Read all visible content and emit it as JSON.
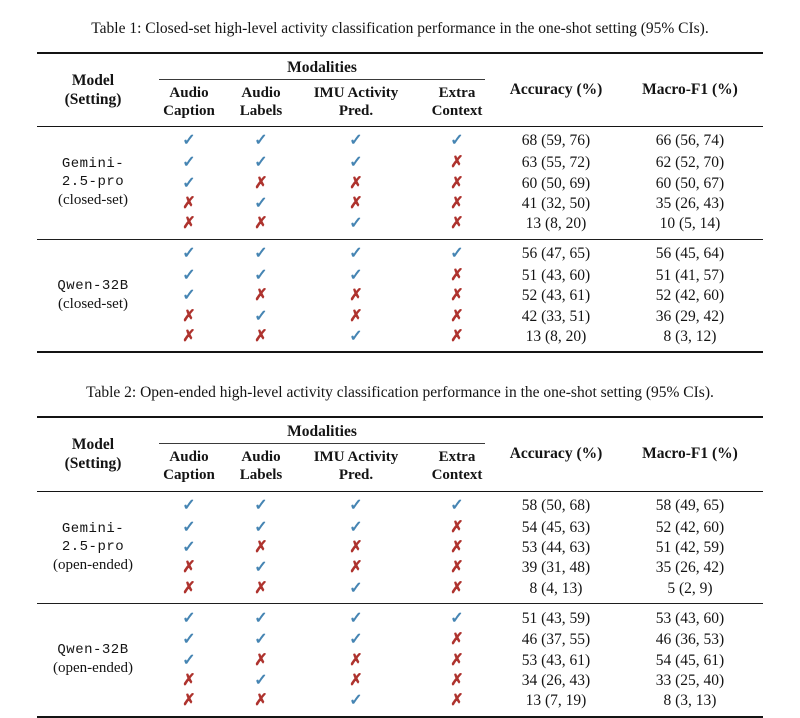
{
  "colors": {
    "check": "#4685b3",
    "cross": "#ae332e",
    "text": "#141414"
  },
  "glyphs": {
    "check": "✓",
    "cross": "✗"
  },
  "tables": [
    {
      "caption": "Table 1: Closed-set high-level activity classification performance in the one-shot setting (95% CIs).",
      "header": {
        "model_line1": "Model",
        "model_line2": "(Setting)",
        "modalities": "Modalities",
        "subcols": [
          {
            "line1": "Audio",
            "line2": "Caption"
          },
          {
            "line1": "Audio",
            "line2": "Labels"
          },
          {
            "line1": "IMU Activity",
            "line2": "Pred."
          },
          {
            "line1": "Extra",
            "line2": "Context"
          }
        ],
        "accuracy": "Accuracy (%)",
        "macro_f1": "Macro-F1 (%)"
      },
      "blocks": [
        {
          "model_line1": "Gemini-",
          "model_line2": "2.5-pro",
          "setting": "(closed-set)",
          "rows": [
            {
              "marks": [
                "✓",
                "✓",
                "✓",
                "✓"
              ],
              "accuracy": "68 (59, 76)",
              "macro_f1": "66 (56, 74)"
            },
            {
              "marks": [
                "✓",
                "✓",
                "✓",
                "✗"
              ],
              "accuracy": "63 (55, 72)",
              "macro_f1": "62 (52, 70)"
            },
            {
              "marks": [
                "✓",
                "✗",
                "✗",
                "✗"
              ],
              "accuracy": "60 (50, 69)",
              "macro_f1": "60 (50, 67)"
            },
            {
              "marks": [
                "✗",
                "✓",
                "✗",
                "✗"
              ],
              "accuracy": "41 (32, 50)",
              "macro_f1": "35 (26, 43)"
            },
            {
              "marks": [
                "✗",
                "✗",
                "✓",
                "✗"
              ],
              "accuracy": "13 (8, 20)",
              "macro_f1": "10 (5, 14)"
            }
          ]
        },
        {
          "model_line1": "Qwen-32B",
          "setting": "(closed-set)",
          "rows": [
            {
              "marks": [
                "✓",
                "✓",
                "✓",
                "✓"
              ],
              "accuracy": "56 (47, 65)",
              "macro_f1": "56 (45, 64)"
            },
            {
              "marks": [
                "✓",
                "✓",
                "✓",
                "✗"
              ],
              "accuracy": "51 (43, 60)",
              "macro_f1": "51 (41, 57)"
            },
            {
              "marks": [
                "✓",
                "✗",
                "✗",
                "✗"
              ],
              "accuracy": "52 (43, 61)",
              "macro_f1": "52 (42, 60)"
            },
            {
              "marks": [
                "✗",
                "✓",
                "✗",
                "✗"
              ],
              "accuracy": "42 (33, 51)",
              "macro_f1": "36 (29, 42)"
            },
            {
              "marks": [
                "✗",
                "✗",
                "✓",
                "✗"
              ],
              "accuracy": "13 (8, 20)",
              "macro_f1": "8 (3, 12)"
            }
          ]
        }
      ]
    },
    {
      "caption": "Table 2: Open-ended high-level activity classification performance in the one-shot setting (95% CIs).",
      "header": {
        "model_line1": "Model",
        "model_line2": "(Setting)",
        "modalities": "Modalities",
        "subcols": [
          {
            "line1": "Audio",
            "line2": "Caption"
          },
          {
            "line1": "Audio",
            "line2": "Labels"
          },
          {
            "line1": "IMU Activity",
            "line2": "Pred."
          },
          {
            "line1": "Extra",
            "line2": "Context"
          }
        ],
        "accuracy": "Accuracy (%)",
        "macro_f1": "Macro-F1 (%)"
      },
      "blocks": [
        {
          "model_line1": "Gemini-",
          "model_line2": "2.5-pro",
          "setting": "(open-ended)",
          "rows": [
            {
              "marks": [
                "✓",
                "✓",
                "✓",
                "✓"
              ],
              "accuracy": "58 (50, 68)",
              "macro_f1": "58 (49, 65)"
            },
            {
              "marks": [
                "✓",
                "✓",
                "✓",
                "✗"
              ],
              "accuracy": "54 (45, 63)",
              "macro_f1": "52 (42, 60)"
            },
            {
              "marks": [
                "✓",
                "✗",
                "✗",
                "✗"
              ],
              "accuracy": "53 (44, 63)",
              "macro_f1": "51 (42, 59)"
            },
            {
              "marks": [
                "✗",
                "✓",
                "✗",
                "✗"
              ],
              "accuracy": "39 (31, 48)",
              "macro_f1": "35 (26, 42)"
            },
            {
              "marks": [
                "✗",
                "✗",
                "✓",
                "✗"
              ],
              "accuracy": "8 (4, 13)",
              "macro_f1": "5 (2, 9)"
            }
          ]
        },
        {
          "model_line1": "Qwen-32B",
          "setting": "(open-ended)",
          "rows": [
            {
              "marks": [
                "✓",
                "✓",
                "✓",
                "✓"
              ],
              "accuracy": "51 (43, 59)",
              "macro_f1": "53 (43, 60)"
            },
            {
              "marks": [
                "✓",
                "✓",
                "✓",
                "✗"
              ],
              "accuracy": "46 (37, 55)",
              "macro_f1": "46 (36, 53)"
            },
            {
              "marks": [
                "✓",
                "✗",
                "✗",
                "✗"
              ],
              "accuracy": "53 (43, 61)",
              "macro_f1": "54 (45, 61)"
            },
            {
              "marks": [
                "✗",
                "✓",
                "✗",
                "✗"
              ],
              "accuracy": "34 (26, 43)",
              "macro_f1": "33 (25, 40)"
            },
            {
              "marks": [
                "✗",
                "✗",
                "✓",
                "✗"
              ],
              "accuracy": "13 (7, 19)",
              "macro_f1": "8 (3, 13)"
            }
          ]
        }
      ]
    }
  ]
}
